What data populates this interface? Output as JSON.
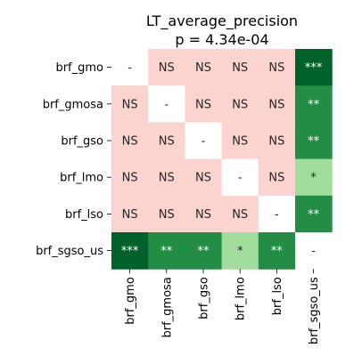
{
  "chart_data": {
    "type": "heatmap",
    "title": "LT_average_precision",
    "subtitle": "p = 4.34e-04",
    "rows": [
      "brf_gmo",
      "brf_gmosa",
      "brf_gso",
      "brf_lmo",
      "brf_lso",
      "brf_sgso_us"
    ],
    "columns": [
      "brf_gmo",
      "brf_gmosa",
      "brf_gso",
      "brf_lmo",
      "brf_lso",
      "brf_sgso_us"
    ],
    "cells": [
      [
        "-",
        "NS",
        "NS",
        "NS",
        "NS",
        "***"
      ],
      [
        "NS",
        "-",
        "NS",
        "NS",
        "NS",
        "**"
      ],
      [
        "NS",
        "NS",
        "-",
        "NS",
        "NS",
        "**"
      ],
      [
        "NS",
        "NS",
        "NS",
        "-",
        "NS",
        "*"
      ],
      [
        "NS",
        "NS",
        "NS",
        "NS",
        "-",
        "**"
      ],
      [
        "***",
        "**",
        "**",
        "*",
        "**",
        "-"
      ]
    ],
    "colors": {
      "NS": "#fbd4d0",
      "*": "#a2dc9c",
      "**": "#238c45",
      "***": "#00622b",
      "-": "#ffffff"
    },
    "text_colors": {
      "NS": "#262626",
      "*": "#262626",
      "**": "#ffffff",
      "***": "#ffffff",
      "-": "#262626"
    }
  }
}
